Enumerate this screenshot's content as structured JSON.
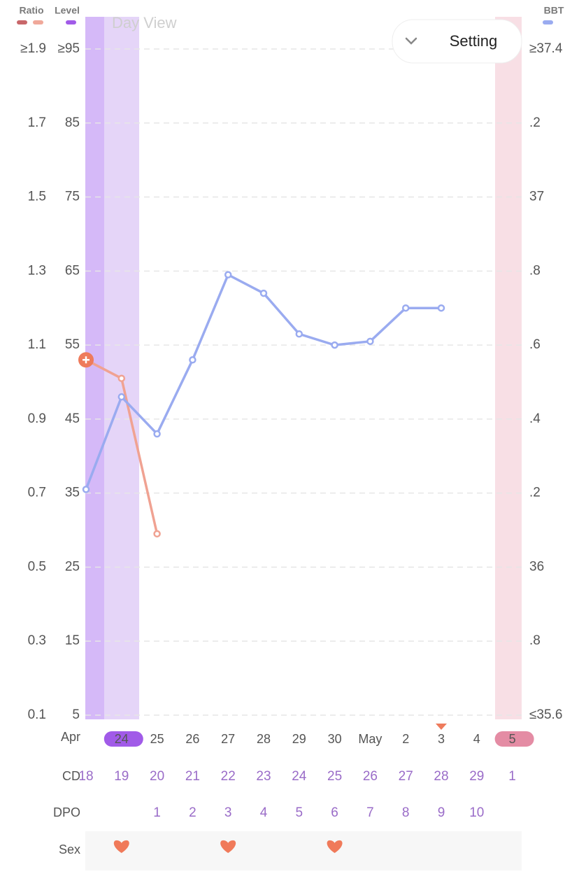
{
  "chart_data": {
    "type": "line",
    "view_label": "Day View",
    "button": "Setting",
    "categories": [
      null,
      "24",
      "25",
      "26",
      "27",
      "28",
      "29",
      "30",
      "May",
      "2",
      "3",
      "4",
      "5"
    ],
    "month_label": "Apr",
    "series": [
      {
        "name": "Ratio",
        "color": "#f0a292",
        "colors": [
          "#c8676a",
          "#f0a89a"
        ],
        "axis": "y",
        "values": [
          1.06,
          1.01,
          0.59,
          null,
          null,
          null,
          null,
          null,
          null,
          null,
          null,
          null,
          null
        ]
      },
      {
        "name": "BBT",
        "color": "#9aabf0",
        "colors": [
          "#9aabf0"
        ],
        "axis": "y2",
        "values": [
          36.21,
          36.46,
          36.36,
          36.56,
          36.79,
          36.74,
          36.63,
          36.6,
          36.61,
          36.7,
          36.7,
          null,
          null
        ]
      }
    ],
    "level_legend": {
      "name": "Level",
      "color": "#a15be8"
    },
    "ylim": [
      0.1,
      1.9
    ],
    "yticks": [
      {
        "value": 1.9,
        "label": "≥1.9"
      },
      1.7,
      1.5,
      1.3,
      1.1,
      0.9,
      0.7,
      0.5,
      0.3,
      0.1
    ],
    "level_lim": [
      5,
      95
    ],
    "level_ticks": [
      {
        "value": 95,
        "label": "≥95"
      },
      85,
      75,
      65,
      55,
      45,
      35,
      25,
      15,
      5
    ],
    "y2lim": [
      35.6,
      37.4
    ],
    "y2ticks": [
      {
        "value": 37.4,
        "label": "≥37.4"
      },
      {
        "value": 37.2,
        "label": ".2"
      },
      37,
      {
        "value": 36.8,
        "label": ".8"
      },
      {
        "value": 36.6,
        "label": ".6"
      },
      {
        "value": 36.4,
        "label": ".4"
      },
      {
        "value": 36.2,
        "label": ".2"
      },
      36,
      {
        "value": 35.8,
        "label": ".8"
      },
      {
        "value": 35.6,
        "label": "≤35.6"
      }
    ],
    "grid": true,
    "cd_label": "CD",
    "cd": [
      18,
      19,
      20,
      21,
      22,
      23,
      24,
      25,
      26,
      27,
      28,
      29,
      1
    ],
    "dpo_label": "DPO",
    "dpo": [
      null,
      null,
      1,
      2,
      3,
      4,
      5,
      6,
      7,
      8,
      9,
      10,
      null
    ],
    "sex_label": "Sex",
    "sex": [
      false,
      true,
      false,
      false,
      true,
      false,
      false,
      true,
      false,
      false,
      false,
      false,
      false
    ],
    "date_pills": [
      {
        "index": 1,
        "color": "#a15be8"
      },
      {
        "index": 12,
        "color": "#e48ca4"
      }
    ],
    "today_index": 10
  }
}
